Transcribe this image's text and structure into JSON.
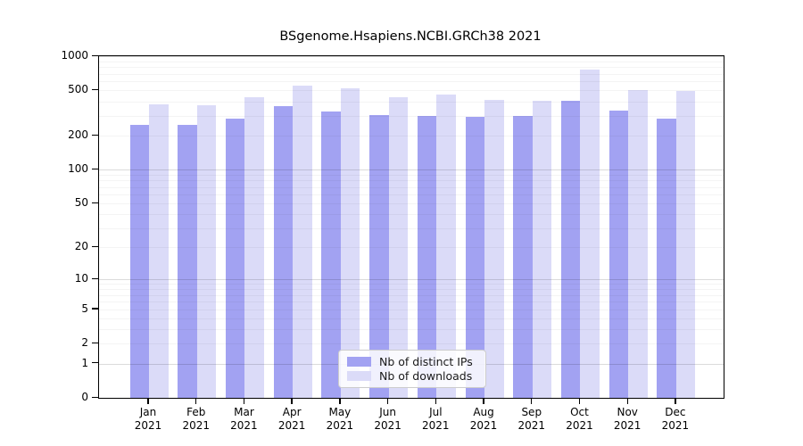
{
  "chart_data": {
    "type": "bar",
    "title": "BSgenome.Hsapiens.NCBI.GRCh38 2021",
    "year": "2021",
    "months": [
      "Jan",
      "Feb",
      "Mar",
      "Apr",
      "May",
      "Jun",
      "Jul",
      "Aug",
      "Sep",
      "Oct",
      "Nov",
      "Dec"
    ],
    "series": [
      {
        "name": "Nb of distinct IPs",
        "color": "#a2a2f2",
        "values": [
          250,
          247,
          280,
          365,
          326,
          301,
          298,
          291,
          300,
          403,
          331,
          284
        ]
      },
      {
        "name": "Nb of downloads",
        "color": "#dbdbf8",
        "values": [
          375,
          369,
          437,
          552,
          519,
          433,
          460,
          413,
          408,
          758,
          503,
          494
        ]
      }
    ],
    "yscale": "log1p",
    "ylim": [
      0,
      1000
    ],
    "yticks": [
      0,
      1,
      2,
      5,
      10,
      20,
      50,
      100,
      200,
      500,
      1000
    ],
    "grid": "horizontal, log minor + decade major",
    "legend_position": "inside lower center",
    "colors": {
      "axis": "#000000",
      "major_gridline": "#c9c9c9",
      "minor_gridline": "#efefef"
    }
  }
}
